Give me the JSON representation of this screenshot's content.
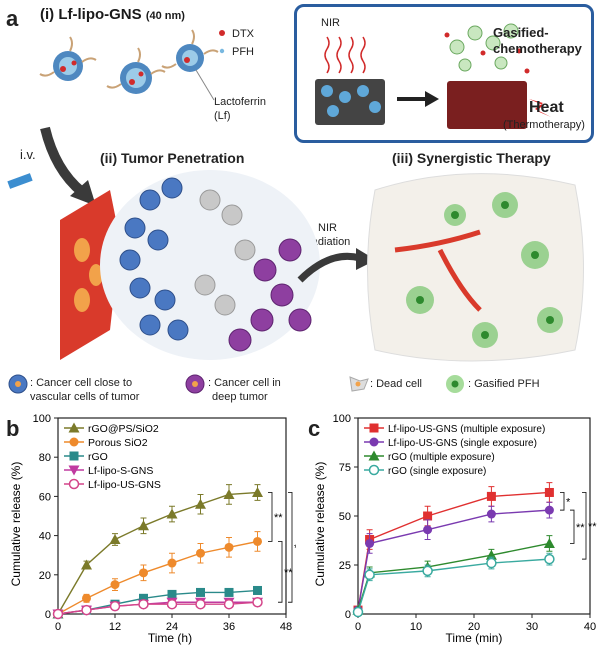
{
  "panel_a": {
    "letter": "a",
    "title_i": "(i) Lf-lipo-GNS",
    "size_note": "(40 nm)",
    "legend_dtx": "DTX",
    "legend_pfh": "PFH",
    "lactoferrin": "Lactoferrin",
    "lactoferrin_abbr": "(Lf)",
    "iv": "i.v.",
    "title_ii": "(ii) Tumor Penetration",
    "title_iii": "(iii) Synergistic Therapy",
    "nir_irradiation_1": "NIR",
    "nir_irradiation_2": "irradiation",
    "box_nir": "NIR",
    "box_gasified_1": "Gasified-",
    "box_gasified_2": "chemotherapy",
    "box_heat": "Heat",
    "box_thermo": "(Thermotherapy)",
    "key": {
      "close_1": ": Cancer cell close to",
      "close_2": "vascular cells of tumor",
      "deep_1": ": Cancer cell in",
      "deep_2": "deep tumor",
      "dead": ": Dead cell",
      "gasified": ": Gasified PFH"
    },
    "colors": {
      "vessel": "#d93a2b",
      "cell_blue": "#4a78c2",
      "cell_purple": "#8e3fa0",
      "cell_gray": "#bfbfbf",
      "gasified": "#55b84a",
      "box_border": "#2a5d9f"
    }
  },
  "chart_data": [
    {
      "type": "line",
      "panel": "b",
      "xlabel": "Time (h)",
      "ylabel": "Cumulative release (%)",
      "xlim": [
        0,
        48
      ],
      "ylim": [
        0,
        100
      ],
      "xticks": [
        "0",
        "12",
        "24",
        "36",
        "48"
      ],
      "yticks": [
        "0",
        "20",
        "40",
        "60",
        "80",
        "100"
      ],
      "significance": [
        "**",
        "**",
        "**"
      ],
      "legend_position": "top-left",
      "series": [
        {
          "name": "rGO@PS/SiO2",
          "color": "#7b7a2a",
          "marker": "triangle-up",
          "x": [
            0,
            6,
            12,
            18,
            24,
            30,
            36,
            42
          ],
          "y": [
            0,
            25,
            38,
            45,
            51,
            56,
            61,
            62
          ],
          "err": [
            0,
            2,
            3,
            4,
            4,
            5,
            5,
            4
          ]
        },
        {
          "name": "Porous SiO2",
          "color": "#ee8a2c",
          "marker": "circle",
          "x": [
            0,
            6,
            12,
            18,
            24,
            30,
            36,
            42
          ],
          "y": [
            0,
            8,
            15,
            21,
            26,
            31,
            34,
            37
          ],
          "err": [
            0,
            2,
            3,
            4,
            5,
            5,
            5,
            5
          ]
        },
        {
          "name": "rGO",
          "color": "#2a8a8a",
          "marker": "square",
          "x": [
            0,
            6,
            12,
            18,
            24,
            30,
            36,
            42
          ],
          "y": [
            0,
            2,
            5,
            8,
            10,
            11,
            11,
            12
          ],
          "err": [
            0,
            1,
            1,
            1,
            1,
            1,
            1,
            1
          ]
        },
        {
          "name": "Lf-lipo-S-GNS",
          "color": "#c03aa0",
          "marker": "triangle-down",
          "x": [
            0,
            6,
            12,
            18,
            24,
            30,
            36,
            42
          ],
          "y": [
            0,
            2,
            4,
            5,
            6,
            6,
            6,
            6
          ],
          "err": [
            0,
            1,
            1,
            1,
            1,
            1,
            1,
            1
          ]
        },
        {
          "name": "Lf-lipo-US-GNS",
          "color": "#d4458a",
          "marker": "circle-open",
          "x": [
            0,
            6,
            12,
            18,
            24,
            30,
            36,
            42
          ],
          "y": [
            0,
            2,
            4,
            5,
            5,
            5,
            5,
            6
          ],
          "err": [
            0,
            1,
            1,
            1,
            1,
            1,
            1,
            1
          ]
        }
      ]
    },
    {
      "type": "line",
      "panel": "c",
      "xlabel": "Time (min)",
      "ylabel": "Cumulative release (%)",
      "xlim": [
        0,
        40
      ],
      "ylim": [
        0,
        100
      ],
      "xticks": [
        "0",
        "10",
        "20",
        "30",
        "40"
      ],
      "yticks": [
        "0",
        "25",
        "50",
        "75",
        "100"
      ],
      "significance": [
        "*",
        "**",
        "**"
      ],
      "legend_position": "top-left",
      "series": [
        {
          "name": "Lf-lipo-US-GNS (multiple exposure)",
          "color": "#e03030",
          "marker": "square",
          "x": [
            0,
            2,
            12,
            23,
            33
          ],
          "y": [
            2,
            38,
            50,
            60,
            62
          ],
          "err": [
            1,
            5,
            5,
            5,
            5
          ]
        },
        {
          "name": "Lf-lipo-US-GNS (single exposure)",
          "color": "#7a3ab0",
          "marker": "circle",
          "x": [
            0,
            2,
            12,
            23,
            33
          ],
          "y": [
            2,
            36,
            43,
            51,
            53
          ],
          "err": [
            1,
            5,
            5,
            4,
            4
          ]
        },
        {
          "name": "rGO (multiple exposure)",
          "color": "#2e8a2e",
          "marker": "triangle-up",
          "x": [
            0,
            2,
            12,
            23,
            33
          ],
          "y": [
            2,
            21,
            24,
            30,
            36
          ],
          "err": [
            1,
            3,
            3,
            3,
            4
          ]
        },
        {
          "name": "rGO (single exposure)",
          "color": "#3aaaa0",
          "marker": "circle-open",
          "x": [
            0,
            2,
            12,
            23,
            33
          ],
          "y": [
            1,
            20,
            22,
            26,
            28
          ],
          "err": [
            1,
            3,
            3,
            3,
            3
          ]
        }
      ]
    }
  ]
}
